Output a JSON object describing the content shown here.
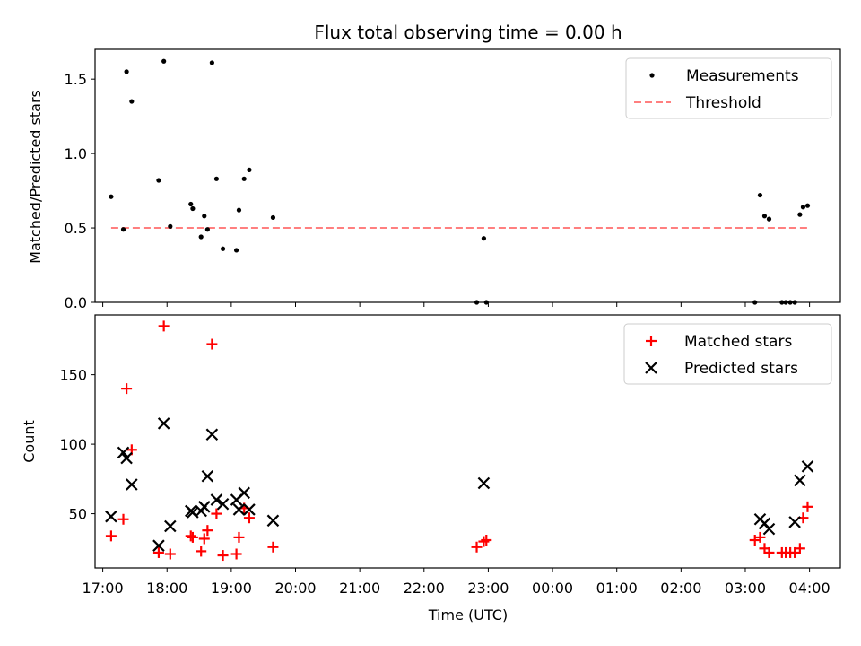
{
  "chart_data": [
    {
      "type": "scatter",
      "title": "Flux total observing time = 0.00 h",
      "xlabel": "",
      "ylabel": "Matched/Predicted stars",
      "ylim": [
        0,
        1.7
      ],
      "yticks": [
        0.0,
        0.5,
        1.0,
        1.5
      ],
      "ytick_labels": [
        "0.0",
        "0.5",
        "1.0",
        "1.5"
      ],
      "xlim_hours": [
        16.88,
        28.48
      ],
      "x_unit": "hours since 00:00 UTC of the first day",
      "xticks": [
        17,
        18,
        19,
        20,
        21,
        22,
        23,
        24,
        25,
        26,
        27,
        28
      ],
      "xtick_labels": [
        "",
        "",
        "",
        "",
        "",
        "",
        "",
        "",
        "",
        "",
        "",
        ""
      ],
      "legend_position": "top-right",
      "series": [
        {
          "name": "Measurements",
          "kind": "points",
          "color": "#000000",
          "points": [
            [
              17.13,
              0.71
            ],
            [
              17.32,
              0.49
            ],
            [
              17.37,
              1.55
            ],
            [
              17.45,
              1.35
            ],
            [
              17.87,
              0.82
            ],
            [
              17.95,
              1.62
            ],
            [
              18.05,
              0.51
            ],
            [
              18.37,
              0.66
            ],
            [
              18.4,
              0.63
            ],
            [
              18.53,
              0.44
            ],
            [
              18.58,
              0.58
            ],
            [
              18.63,
              0.49
            ],
            [
              18.7,
              1.61
            ],
            [
              18.77,
              0.83
            ],
            [
              18.87,
              0.36
            ],
            [
              19.08,
              0.35
            ],
            [
              19.12,
              0.62
            ],
            [
              19.2,
              0.83
            ],
            [
              19.28,
              0.89
            ],
            [
              19.65,
              0.57
            ],
            [
              22.82,
              0.0
            ],
            [
              22.97,
              0.0
            ],
            [
              22.93,
              0.43
            ],
            [
              27.15,
              0.0
            ],
            [
              27.23,
              0.72
            ],
            [
              27.3,
              0.58
            ],
            [
              27.37,
              0.56
            ],
            [
              27.57,
              0.0
            ],
            [
              27.63,
              0.0
            ],
            [
              27.7,
              0.0
            ],
            [
              27.77,
              0.0
            ],
            [
              27.85,
              0.59
            ],
            [
              27.9,
              0.64
            ],
            [
              27.97,
              0.65
            ]
          ]
        },
        {
          "name": "Threshold",
          "kind": "dashed-line",
          "color": "#ff7f7f",
          "points": [
            [
              17.13,
              0.5
            ],
            [
              27.97,
              0.5
            ]
          ]
        }
      ]
    },
    {
      "type": "scatter",
      "title": "",
      "xlabel": "Time (UTC)",
      "ylabel": "Count",
      "ylim": [
        11,
        193
      ],
      "yticks": [
        50,
        100,
        150
      ],
      "ytick_labels": [
        "50",
        "100",
        "150"
      ],
      "xlim_hours": [
        16.88,
        28.48
      ],
      "x_unit": "hours since 00:00 UTC of the first day",
      "xticks": [
        17,
        18,
        19,
        20,
        21,
        22,
        23,
        24,
        25,
        26,
        27,
        28
      ],
      "xtick_labels": [
        "17:00",
        "18:00",
        "19:00",
        "20:00",
        "21:00",
        "22:00",
        "23:00",
        "00:00",
        "01:00",
        "02:00",
        "03:00",
        "04:00"
      ],
      "legend_position": "top-right",
      "series": [
        {
          "name": "Matched stars",
          "kind": "plus",
          "color": "#ff0000",
          "points": [
            [
              17.13,
              34
            ],
            [
              17.32,
              46
            ],
            [
              17.37,
              140
            ],
            [
              17.45,
              96
            ],
            [
              17.87,
              22
            ],
            [
              17.95,
              185
            ],
            [
              18.05,
              21
            ],
            [
              18.37,
              34
            ],
            [
              18.4,
              33
            ],
            [
              18.53,
              23
            ],
            [
              18.58,
              32
            ],
            [
              18.63,
              38
            ],
            [
              18.7,
              172
            ],
            [
              18.77,
              50
            ],
            [
              18.87,
              20
            ],
            [
              19.08,
              21
            ],
            [
              19.12,
              33
            ],
            [
              19.2,
              54
            ],
            [
              19.28,
              47
            ],
            [
              19.65,
              26
            ],
            [
              22.82,
              26
            ],
            [
              22.97,
              31
            ],
            [
              22.93,
              30
            ],
            [
              27.15,
              31
            ],
            [
              27.23,
              33
            ],
            [
              27.3,
              25
            ],
            [
              27.37,
              22
            ],
            [
              27.57,
              22
            ],
            [
              27.63,
              22
            ],
            [
              27.7,
              22
            ],
            [
              27.77,
              22
            ],
            [
              27.85,
              25
            ],
            [
              27.9,
              47
            ],
            [
              27.97,
              55
            ]
          ]
        },
        {
          "name": "Predicted stars",
          "kind": "cross",
          "color": "#000000",
          "points": [
            [
              17.13,
              48
            ],
            [
              17.32,
              94
            ],
            [
              17.37,
              90
            ],
            [
              17.45,
              71
            ],
            [
              17.87,
              27
            ],
            [
              17.95,
              115
            ],
            [
              18.05,
              41
            ],
            [
              18.37,
              52
            ],
            [
              18.4,
              51
            ],
            [
              18.53,
              52
            ],
            [
              18.58,
              55
            ],
            [
              18.63,
              77
            ],
            [
              18.7,
              107
            ],
            [
              18.77,
              60
            ],
            [
              18.87,
              57
            ],
            [
              19.08,
              60
            ],
            [
              19.12,
              53
            ],
            [
              19.2,
              65
            ],
            [
              19.28,
              53
            ],
            [
              19.65,
              45
            ],
            [
              22.93,
              72
            ],
            [
              27.23,
              46
            ],
            [
              27.3,
              43
            ],
            [
              27.37,
              39
            ],
            [
              27.77,
              44
            ],
            [
              27.85,
              74
            ],
            [
              27.97,
              84
            ]
          ]
        }
      ]
    }
  ]
}
